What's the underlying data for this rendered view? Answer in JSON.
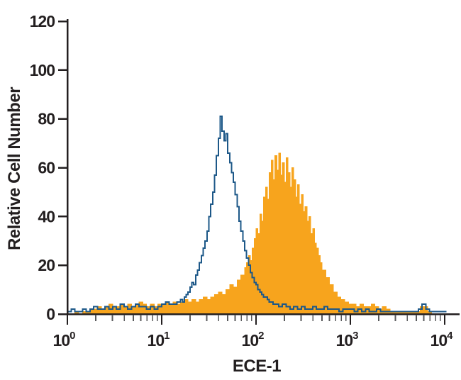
{
  "chart_data": {
    "type": "area",
    "subtype": "flow-cytometry-step-histogram-overlay",
    "title": "",
    "xlabel": "ECE-1",
    "ylabel": "Relative Cell Number",
    "x_scale": "log10",
    "xlim_log_exponents": [
      0,
      4
    ],
    "ylim": [
      0,
      122
    ],
    "y_ticks": [
      0,
      20,
      40,
      60,
      80,
      100,
      120
    ],
    "x_major_ticks": [
      {
        "base": "10",
        "exp": "0"
      },
      {
        "base": "10",
        "exp": "1"
      },
      {
        "base": "10",
        "exp": "2"
      },
      {
        "base": "10",
        "exp": "3"
      },
      {
        "base": "10",
        "exp": "4"
      }
    ],
    "x_minor_tick_multiples": [
      2,
      3,
      4,
      5,
      6,
      7,
      8,
      9
    ],
    "grid": false,
    "legend": "none",
    "colors": {
      "stained_fill": "#F7A41D",
      "control_stroke": "#1D5888",
      "axis": "#231F20",
      "minor_tick": "#58595B",
      "background": "#FFFFFF"
    },
    "series": [
      {
        "name": "stained-filled-histogram",
        "role": "filled",
        "color": "#F7A41D",
        "points": [
          [
            0.0,
            0
          ],
          [
            0.04,
            0
          ],
          [
            0.08,
            1
          ],
          [
            0.12,
            0
          ],
          [
            0.16,
            1
          ],
          [
            0.2,
            1
          ],
          [
            0.24,
            2
          ],
          [
            0.28,
            2
          ],
          [
            0.32,
            3
          ],
          [
            0.36,
            2
          ],
          [
            0.4,
            3
          ],
          [
            0.44,
            4
          ],
          [
            0.48,
            3
          ],
          [
            0.52,
            3
          ],
          [
            0.56,
            4
          ],
          [
            0.6,
            3
          ],
          [
            0.64,
            4
          ],
          [
            0.68,
            3
          ],
          [
            0.72,
            4
          ],
          [
            0.76,
            5
          ],
          [
            0.8,
            4
          ],
          [
            0.84,
            3
          ],
          [
            0.88,
            4
          ],
          [
            0.92,
            3
          ],
          [
            0.96,
            4
          ],
          [
            1.0,
            4
          ],
          [
            1.04,
            5
          ],
          [
            1.08,
            4
          ],
          [
            1.12,
            5
          ],
          [
            1.16,
            4
          ],
          [
            1.2,
            5
          ],
          [
            1.24,
            6
          ],
          [
            1.28,
            5
          ],
          [
            1.32,
            6
          ],
          [
            1.36,
            5
          ],
          [
            1.4,
            6
          ],
          [
            1.44,
            7
          ],
          [
            1.48,
            6
          ],
          [
            1.52,
            7
          ],
          [
            1.56,
            8
          ],
          [
            1.6,
            9
          ],
          [
            1.64,
            8
          ],
          [
            1.68,
            10
          ],
          [
            1.72,
            12
          ],
          [
            1.76,
            11
          ],
          [
            1.8,
            14
          ],
          [
            1.84,
            16
          ],
          [
            1.88,
            19
          ],
          [
            1.9,
            21
          ],
          [
            1.92,
            24
          ],
          [
            1.94,
            22
          ],
          [
            1.96,
            27
          ],
          [
            1.98,
            31
          ],
          [
            2.0,
            35
          ],
          [
            2.02,
            33
          ],
          [
            2.04,
            41
          ],
          [
            2.06,
            38
          ],
          [
            2.08,
            48
          ],
          [
            2.1,
            52
          ],
          [
            2.12,
            47
          ],
          [
            2.14,
            58
          ],
          [
            2.16,
            63
          ],
          [
            2.18,
            55
          ],
          [
            2.2,
            65
          ],
          [
            2.22,
            59
          ],
          [
            2.24,
            66
          ],
          [
            2.26,
            57
          ],
          [
            2.28,
            62
          ],
          [
            2.3,
            54
          ],
          [
            2.32,
            64
          ],
          [
            2.34,
            58
          ],
          [
            2.36,
            52
          ],
          [
            2.38,
            60
          ],
          [
            2.4,
            55
          ],
          [
            2.42,
            48
          ],
          [
            2.44,
            53
          ],
          [
            2.46,
            45
          ],
          [
            2.48,
            49
          ],
          [
            2.5,
            42
          ],
          [
            2.52,
            44
          ],
          [
            2.54,
            38
          ],
          [
            2.56,
            40
          ],
          [
            2.58,
            33
          ],
          [
            2.6,
            35
          ],
          [
            2.62,
            29
          ],
          [
            2.64,
            27
          ],
          [
            2.66,
            24
          ],
          [
            2.68,
            21
          ],
          [
            2.7,
            18
          ],
          [
            2.74,
            15
          ],
          [
            2.78,
            12
          ],
          [
            2.82,
            9
          ],
          [
            2.86,
            7
          ],
          [
            2.9,
            6
          ],
          [
            2.94,
            5
          ],
          [
            2.98,
            4
          ],
          [
            3.02,
            4
          ],
          [
            3.06,
            3
          ],
          [
            3.1,
            4
          ],
          [
            3.14,
            3
          ],
          [
            3.18,
            3
          ],
          [
            3.22,
            4
          ],
          [
            3.26,
            3
          ],
          [
            3.3,
            2
          ],
          [
            3.34,
            3
          ],
          [
            3.38,
            2
          ],
          [
            3.42,
            1
          ],
          [
            3.46,
            1
          ],
          [
            3.5,
            1
          ],
          [
            3.54,
            1
          ],
          [
            3.58,
            1
          ],
          [
            3.62,
            1
          ],
          [
            3.66,
            1
          ],
          [
            3.7,
            1
          ],
          [
            3.74,
            3
          ],
          [
            3.78,
            3
          ],
          [
            3.82,
            1
          ],
          [
            3.86,
            0
          ],
          [
            3.9,
            0
          ],
          [
            3.94,
            0
          ],
          [
            3.98,
            0
          ]
        ]
      },
      {
        "name": "control-open-histogram",
        "role": "outline",
        "color": "#1D5888",
        "points": [
          [
            0.0,
            1
          ],
          [
            0.04,
            2
          ],
          [
            0.08,
            1
          ],
          [
            0.12,
            1
          ],
          [
            0.16,
            2
          ],
          [
            0.2,
            1
          ],
          [
            0.24,
            2
          ],
          [
            0.28,
            3
          ],
          [
            0.32,
            2
          ],
          [
            0.36,
            2
          ],
          [
            0.4,
            3
          ],
          [
            0.44,
            2
          ],
          [
            0.48,
            3
          ],
          [
            0.52,
            2
          ],
          [
            0.56,
            4
          ],
          [
            0.6,
            3
          ],
          [
            0.64,
            2
          ],
          [
            0.68,
            3
          ],
          [
            0.72,
            4
          ],
          [
            0.76,
            3
          ],
          [
            0.8,
            3
          ],
          [
            0.84,
            2
          ],
          [
            0.88,
            3
          ],
          [
            0.92,
            2
          ],
          [
            0.96,
            3
          ],
          [
            1.0,
            4
          ],
          [
            1.04,
            5
          ],
          [
            1.08,
            4
          ],
          [
            1.12,
            4
          ],
          [
            1.16,
            5
          ],
          [
            1.18,
            5
          ],
          [
            1.2,
            6
          ],
          [
            1.22,
            5
          ],
          [
            1.24,
            7
          ],
          [
            1.26,
            8
          ],
          [
            1.28,
            9
          ],
          [
            1.3,
            11
          ],
          [
            1.32,
            13
          ],
          [
            1.34,
            12
          ],
          [
            1.36,
            16
          ],
          [
            1.38,
            18
          ],
          [
            1.4,
            21
          ],
          [
            1.42,
            24
          ],
          [
            1.44,
            27
          ],
          [
            1.46,
            30
          ],
          [
            1.48,
            34
          ],
          [
            1.5,
            40
          ],
          [
            1.52,
            45
          ],
          [
            1.54,
            50
          ],
          [
            1.56,
            57
          ],
          [
            1.58,
            65
          ],
          [
            1.6,
            72
          ],
          [
            1.62,
            81
          ],
          [
            1.64,
            75
          ],
          [
            1.66,
            71
          ],
          [
            1.68,
            74
          ],
          [
            1.7,
            66
          ],
          [
            1.72,
            62
          ],
          [
            1.74,
            58
          ],
          [
            1.76,
            54
          ],
          [
            1.78,
            49
          ],
          [
            1.8,
            44
          ],
          [
            1.82,
            38
          ],
          [
            1.84,
            34
          ],
          [
            1.86,
            30
          ],
          [
            1.88,
            26
          ],
          [
            1.9,
            23
          ],
          [
            1.92,
            20
          ],
          [
            1.94,
            17
          ],
          [
            1.96,
            15
          ],
          [
            1.98,
            13
          ],
          [
            2.0,
            12
          ],
          [
            2.02,
            10
          ],
          [
            2.04,
            9
          ],
          [
            2.06,
            8
          ],
          [
            2.08,
            7
          ],
          [
            2.1,
            7
          ],
          [
            2.12,
            6
          ],
          [
            2.14,
            5
          ],
          [
            2.16,
            5
          ],
          [
            2.18,
            4
          ],
          [
            2.2,
            4
          ],
          [
            2.24,
            3
          ],
          [
            2.28,
            4
          ],
          [
            2.32,
            3
          ],
          [
            2.36,
            2
          ],
          [
            2.4,
            3
          ],
          [
            2.44,
            2
          ],
          [
            2.48,
            3
          ],
          [
            2.52,
            2
          ],
          [
            2.56,
            2
          ],
          [
            2.6,
            3
          ],
          [
            2.64,
            2
          ],
          [
            2.68,
            2
          ],
          [
            2.72,
            3
          ],
          [
            2.76,
            2
          ],
          [
            2.8,
            2
          ],
          [
            2.84,
            2
          ],
          [
            2.88,
            1
          ],
          [
            2.92,
            2
          ],
          [
            2.96,
            2
          ],
          [
            3.0,
            2
          ],
          [
            3.04,
            1
          ],
          [
            3.08,
            2
          ],
          [
            3.12,
            1
          ],
          [
            3.16,
            2
          ],
          [
            3.2,
            1
          ],
          [
            3.24,
            1
          ],
          [
            3.28,
            2
          ],
          [
            3.32,
            1
          ],
          [
            3.36,
            1
          ],
          [
            3.4,
            1
          ],
          [
            3.44,
            1
          ],
          [
            3.48,
            1
          ],
          [
            3.52,
            1
          ],
          [
            3.56,
            1
          ],
          [
            3.6,
            1
          ],
          [
            3.64,
            1
          ],
          [
            3.68,
            1
          ],
          [
            3.72,
            2
          ],
          [
            3.76,
            4
          ],
          [
            3.8,
            2
          ],
          [
            3.84,
            1
          ],
          [
            3.88,
            1
          ],
          [
            3.92,
            1
          ],
          [
            3.96,
            1
          ],
          [
            4.0,
            1
          ]
        ]
      }
    ]
  }
}
